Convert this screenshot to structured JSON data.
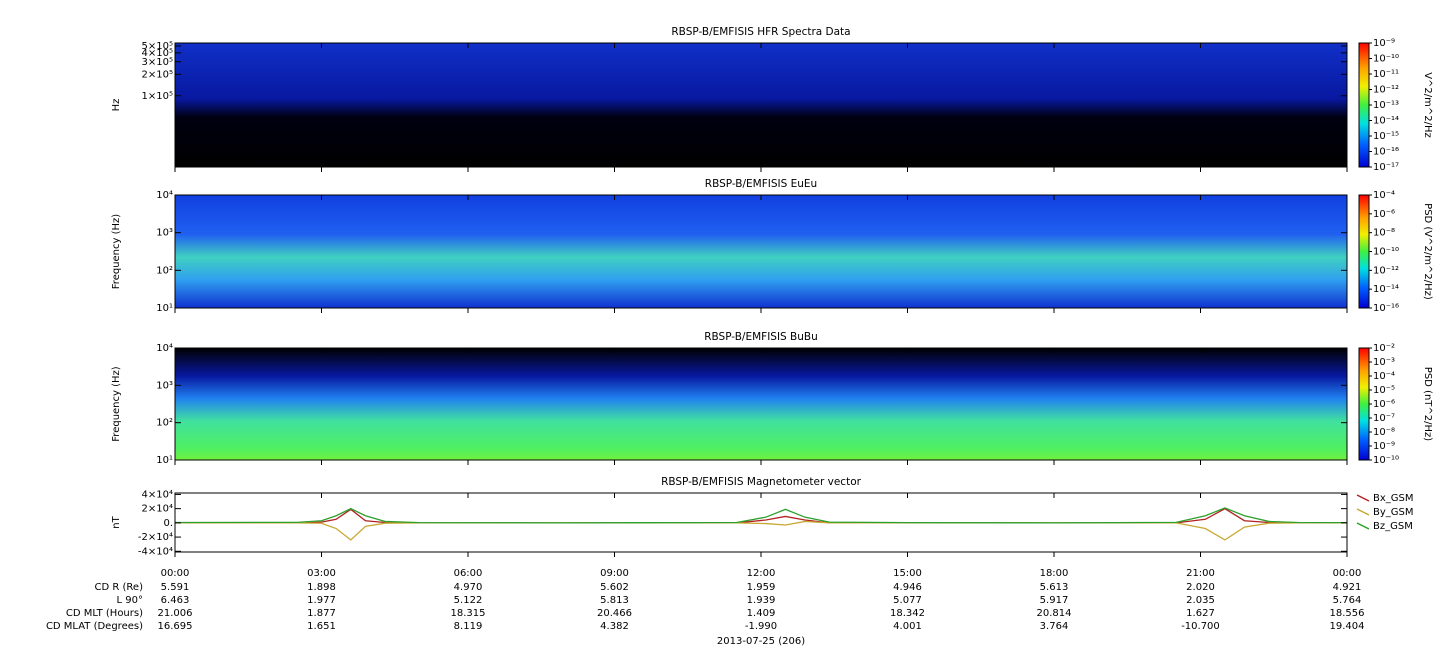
{
  "chart_data": [
    {
      "type": "spectrogram",
      "title": "RBSP-B/EMFISIS  HFR Spectra Data",
      "y_label": "Hz",
      "y_log": true,
      "ylim": [
        10000,
        550000
      ],
      "yticks": [
        {
          "value": 500000,
          "label": "5×10⁵"
        },
        {
          "value": 400000,
          "label": "4×10⁵"
        },
        {
          "value": 300000,
          "label": "3×10⁵"
        },
        {
          "value": 200000,
          "label": "2×10⁵"
        },
        {
          "value": 100000,
          "label": "1×10⁵"
        }
      ],
      "colorbar": {
        "label": "V^2/m^2/Hz",
        "lim": [
          1e-17,
          1e-09
        ],
        "ticks": [
          {
            "value": 1e-09,
            "label": "10⁻⁹"
          },
          {
            "value": 1e-10,
            "label": "10⁻¹⁰"
          },
          {
            "value": 1e-11,
            "label": "10⁻¹¹"
          },
          {
            "value": 1e-12,
            "label": "10⁻¹²"
          },
          {
            "value": 1e-13,
            "label": "10⁻¹³"
          },
          {
            "value": 1e-14,
            "label": "10⁻¹⁴"
          },
          {
            "value": 1e-15,
            "label": "10⁻¹⁵"
          },
          {
            "value": 1e-16,
            "label": "10⁻¹⁶"
          },
          {
            "value": 1e-17,
            "label": "10⁻¹⁷"
          }
        ]
      }
    },
    {
      "type": "spectrogram",
      "title": "RBSP-B/EMFISIS  EuEu",
      "y_label": "Frequency (Hz)",
      "y_log": true,
      "ylim": [
        10,
        10000
      ],
      "yticks": [
        {
          "value": 10000,
          "label": "10⁴"
        },
        {
          "value": 1000,
          "label": "10³"
        },
        {
          "value": 100,
          "label": "10²"
        },
        {
          "value": 10,
          "label": "10¹"
        }
      ],
      "colorbar": {
        "label": "PSD (V^2/m^2/Hz)",
        "lim": [
          1e-16,
          0.0001
        ],
        "ticks": [
          {
            "value": 0.0001,
            "label": "10⁻⁴"
          },
          {
            "value": 1e-06,
            "label": "10⁻⁶"
          },
          {
            "value": 1e-08,
            "label": "10⁻⁸"
          },
          {
            "value": 1e-10,
            "label": "10⁻¹⁰"
          },
          {
            "value": 1e-12,
            "label": "10⁻¹²"
          },
          {
            "value": 1e-14,
            "label": "10⁻¹⁴"
          },
          {
            "value": 1e-16,
            "label": "10⁻¹⁶"
          }
        ]
      }
    },
    {
      "type": "spectrogram",
      "title": "RBSP-B/EMFISIS  BuBu",
      "y_label": "Frequency (Hz)",
      "y_log": true,
      "ylim": [
        10,
        10000
      ],
      "yticks": [
        {
          "value": 10000,
          "label": "10⁴"
        },
        {
          "value": 1000,
          "label": "10³"
        },
        {
          "value": 100,
          "label": "10²"
        },
        {
          "value": 10,
          "label": "10¹"
        }
      ],
      "colorbar": {
        "label": "PSD (nT^2/Hz)",
        "lim": [
          1e-10,
          0.01
        ],
        "ticks": [
          {
            "value": 0.01,
            "label": "10⁻²"
          },
          {
            "value": 0.001,
            "label": "10⁻³"
          },
          {
            "value": 0.0001,
            "label": "10⁻⁴"
          },
          {
            "value": 1e-05,
            "label": "10⁻⁵"
          },
          {
            "value": 1e-06,
            "label": "10⁻⁶"
          },
          {
            "value": 1e-07,
            "label": "10⁻⁷"
          },
          {
            "value": 1e-08,
            "label": "10⁻⁸"
          },
          {
            "value": 1e-09,
            "label": "10⁻⁹"
          },
          {
            "value": 1e-10,
            "label": "10⁻¹⁰"
          }
        ]
      }
    },
    {
      "type": "line",
      "title": "RBSP-B/EMFISIS  Magnetometer vector",
      "y_label": "nT",
      "ylim": [
        -41000,
        42000
      ],
      "yticks": [
        {
          "value": 40000,
          "label": "4×10⁴"
        },
        {
          "value": 20000,
          "label": "2×10⁴"
        },
        {
          "value": 0,
          "label": "0."
        },
        {
          "value": -20000,
          "label": "-2×10⁴"
        },
        {
          "value": -40000,
          "label": "-4×10⁴"
        }
      ],
      "xlim": [
        0,
        24
      ],
      "xticks": [
        {
          "value": 0,
          "label": "00:00"
        },
        {
          "value": 3,
          "label": "03:00"
        },
        {
          "value": 6,
          "label": "06:00"
        },
        {
          "value": 9,
          "label": "09:00"
        },
        {
          "value": 12,
          "label": "12:00"
        },
        {
          "value": 15,
          "label": "15:00"
        },
        {
          "value": 18,
          "label": "18:00"
        },
        {
          "value": 21,
          "label": "21:00"
        },
        {
          "value": 24,
          "label": "00:00"
        }
      ],
      "x": [
        0,
        2.5,
        3.0,
        3.3,
        3.6,
        3.9,
        4.3,
        5,
        8,
        11.5,
        12.1,
        12.5,
        12.9,
        13.4,
        15,
        18,
        20.5,
        21.1,
        21.5,
        21.9,
        22.4,
        23,
        24
      ],
      "series": [
        {
          "name": "Bx_GSM",
          "color": "#b22222",
          "values": [
            0,
            0,
            1000,
            5000,
            19000,
            3000,
            500,
            0,
            0,
            0,
            4000,
            9000,
            4000,
            0,
            0,
            0,
            0,
            5000,
            20000,
            3000,
            500,
            0,
            0
          ]
        },
        {
          "name": "By_GSM",
          "color": "#c8a832",
          "values": [
            0,
            0,
            -500,
            -8000,
            -24000,
            -5000,
            -500,
            0,
            0,
            0,
            -1000,
            -3000,
            2000,
            0,
            0,
            0,
            0,
            -8000,
            -24000,
            -6000,
            -500,
            0,
            0
          ]
        },
        {
          "name": "Bz_GSM",
          "color": "#2ca02c",
          "values": [
            500,
            700,
            3000,
            10000,
            20000,
            10000,
            2000,
            300,
            0,
            500,
            8000,
            19000,
            8000,
            1000,
            300,
            0,
            700,
            10000,
            21000,
            10000,
            2000,
            500,
            300
          ]
        }
      ]
    }
  ],
  "ephemeris": {
    "rows": [
      {
        "label": "CD R (Re)",
        "values": [
          "5.591",
          "1.898",
          "4.970",
          "5.602",
          "1.959",
          "4.946",
          "5.613",
          "2.020",
          "4.921"
        ]
      },
      {
        "label": "L 90°",
        "values": [
          "6.463",
          "1.977",
          "5.122",
          "5.813",
          "1.939",
          "5.077",
          "5.917",
          "2.035",
          "5.764"
        ]
      },
      {
        "label": "CD MLT (Hours)",
        "values": [
          "21.006",
          "1.877",
          "18.315",
          "20.466",
          "1.409",
          "18.342",
          "20.814",
          "1.627",
          "18.556"
        ]
      },
      {
        "label": "CD MLAT (Degrees)",
        "values": [
          "16.695",
          "1.651",
          "8.119",
          "4.382",
          "-1.990",
          "4.001",
          "3.764",
          "-10.700",
          "19.404"
        ]
      }
    ],
    "date": "2013-07-25 (206)"
  }
}
